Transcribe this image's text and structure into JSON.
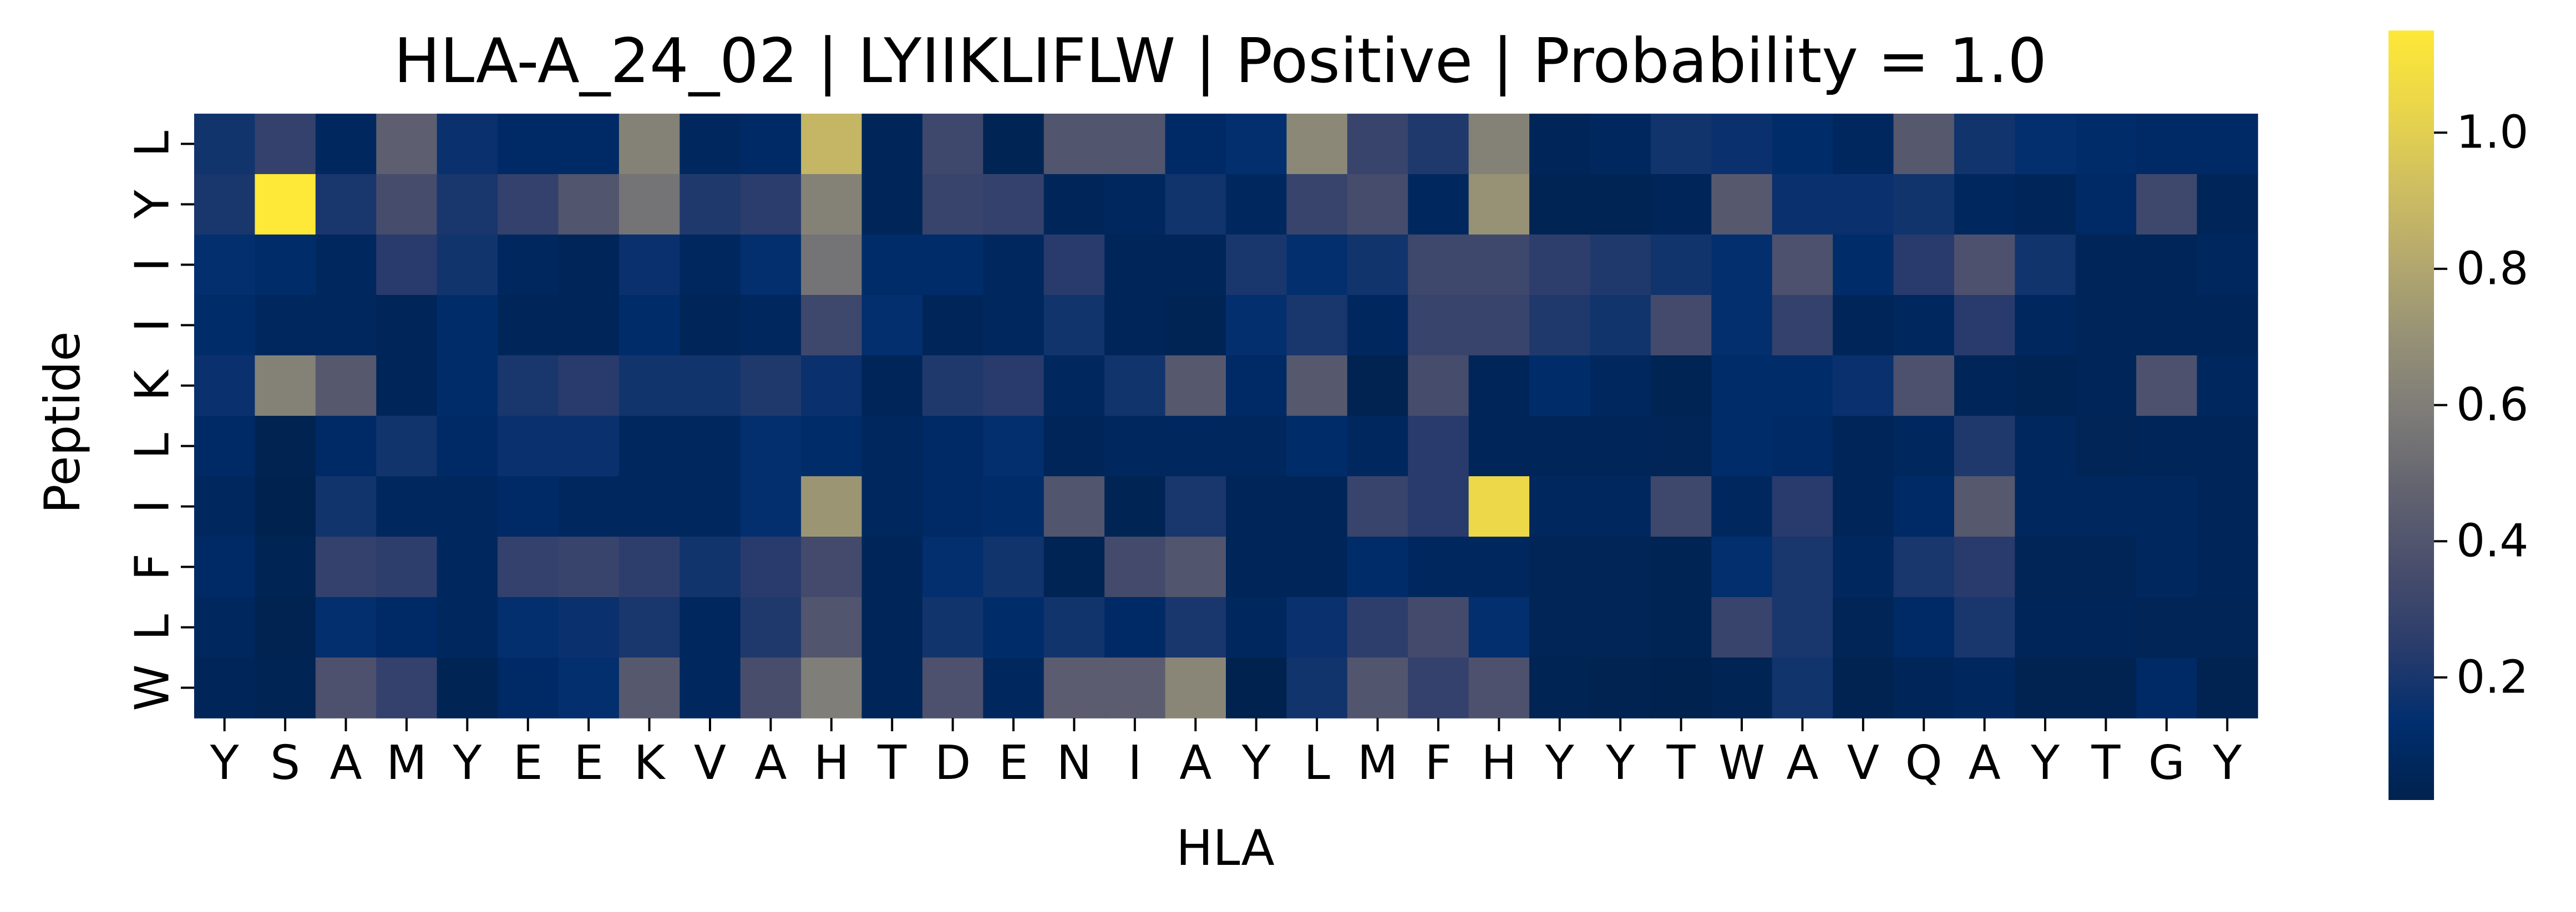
{
  "chart_data": {
    "type": "heatmap",
    "title": "HLA-A_24_02 | LYIIKLIFLW | Positive | Probability = 1.0",
    "xlabel": "HLA",
    "ylabel": "Peptide",
    "x_labels": [
      "Y",
      "S",
      "A",
      "M",
      "Y",
      "E",
      "E",
      "K",
      "V",
      "A",
      "H",
      "T",
      "D",
      "E",
      "N",
      "I",
      "A",
      "Y",
      "L",
      "M",
      "F",
      "H",
      "Y",
      "Y",
      "T",
      "W",
      "A",
      "V",
      "Q",
      "A",
      "Y",
      "T",
      "G",
      "Y"
    ],
    "y_labels": [
      "L",
      "Y",
      "I",
      "I",
      "K",
      "L",
      "I",
      "F",
      "L",
      "W"
    ],
    "values": [
      [
        0.18,
        0.28,
        0.08,
        0.45,
        0.16,
        0.1,
        0.1,
        0.62,
        0.08,
        0.1,
        0.88,
        0.06,
        0.32,
        0.04,
        0.4,
        0.4,
        0.1,
        0.14,
        0.65,
        0.3,
        0.22,
        0.62,
        0.06,
        0.08,
        0.18,
        0.16,
        0.12,
        0.08,
        0.42,
        0.18,
        0.14,
        0.12,
        0.1,
        0.1
      ],
      [
        0.2,
        1.15,
        0.2,
        0.35,
        0.2,
        0.28,
        0.4,
        0.55,
        0.22,
        0.25,
        0.62,
        0.06,
        0.3,
        0.28,
        0.06,
        0.08,
        0.18,
        0.08,
        0.3,
        0.35,
        0.08,
        0.7,
        0.04,
        0.04,
        0.06,
        0.42,
        0.16,
        0.16,
        0.18,
        0.08,
        0.06,
        0.1,
        0.32,
        0.06
      ],
      [
        0.14,
        0.12,
        0.08,
        0.24,
        0.18,
        0.08,
        0.06,
        0.16,
        0.08,
        0.14,
        0.55,
        0.12,
        0.12,
        0.08,
        0.24,
        0.06,
        0.06,
        0.2,
        0.14,
        0.18,
        0.32,
        0.32,
        0.26,
        0.22,
        0.18,
        0.14,
        0.38,
        0.12,
        0.24,
        0.38,
        0.18,
        0.06,
        0.06,
        0.08
      ],
      [
        0.12,
        0.08,
        0.08,
        0.06,
        0.12,
        0.06,
        0.06,
        0.12,
        0.06,
        0.08,
        0.32,
        0.14,
        0.06,
        0.08,
        0.18,
        0.06,
        0.04,
        0.14,
        0.2,
        0.08,
        0.3,
        0.3,
        0.22,
        0.18,
        0.34,
        0.14,
        0.28,
        0.06,
        0.08,
        0.24,
        0.08,
        0.06,
        0.06,
        0.06
      ],
      [
        0.16,
        0.62,
        0.42,
        0.06,
        0.12,
        0.2,
        0.24,
        0.18,
        0.18,
        0.22,
        0.16,
        0.06,
        0.22,
        0.24,
        0.08,
        0.18,
        0.42,
        0.1,
        0.42,
        0.03,
        0.35,
        0.06,
        0.12,
        0.08,
        0.04,
        0.12,
        0.12,
        0.16,
        0.38,
        0.06,
        0.04,
        0.06,
        0.38,
        0.08
      ],
      [
        0.1,
        0.03,
        0.1,
        0.18,
        0.1,
        0.16,
        0.16,
        0.08,
        0.08,
        0.14,
        0.12,
        0.08,
        0.1,
        0.14,
        0.06,
        0.08,
        0.08,
        0.08,
        0.12,
        0.08,
        0.24,
        0.06,
        0.06,
        0.06,
        0.05,
        0.12,
        0.1,
        0.06,
        0.08,
        0.22,
        0.08,
        0.05,
        0.06,
        0.06
      ],
      [
        0.08,
        0.02,
        0.18,
        0.08,
        0.08,
        0.1,
        0.08,
        0.08,
        0.08,
        0.14,
        0.72,
        0.08,
        0.1,
        0.12,
        0.4,
        0.04,
        0.2,
        0.06,
        0.06,
        0.3,
        0.24,
        1.05,
        0.08,
        0.08,
        0.32,
        0.08,
        0.24,
        0.06,
        0.1,
        0.42,
        0.08,
        0.08,
        0.08,
        0.06
      ],
      [
        0.1,
        0.04,
        0.28,
        0.26,
        0.08,
        0.28,
        0.3,
        0.26,
        0.18,
        0.24,
        0.34,
        0.06,
        0.14,
        0.18,
        0.04,
        0.34,
        0.4,
        0.06,
        0.06,
        0.12,
        0.08,
        0.08,
        0.05,
        0.05,
        0.04,
        0.14,
        0.2,
        0.08,
        0.2,
        0.24,
        0.05,
        0.05,
        0.08,
        0.06
      ],
      [
        0.08,
        0.03,
        0.14,
        0.1,
        0.08,
        0.14,
        0.16,
        0.2,
        0.08,
        0.22,
        0.4,
        0.06,
        0.18,
        0.12,
        0.18,
        0.1,
        0.2,
        0.08,
        0.16,
        0.26,
        0.34,
        0.14,
        0.05,
        0.05,
        0.04,
        0.3,
        0.2,
        0.05,
        0.1,
        0.2,
        0.06,
        0.06,
        0.05,
        0.05
      ],
      [
        0.06,
        0.04,
        0.38,
        0.28,
        0.04,
        0.1,
        0.14,
        0.42,
        0.08,
        0.36,
        0.6,
        0.06,
        0.38,
        0.08,
        0.44,
        0.44,
        0.64,
        0.02,
        0.18,
        0.4,
        0.28,
        0.38,
        0.04,
        0.03,
        0.02,
        0.04,
        0.18,
        0.03,
        0.06,
        0.08,
        0.03,
        0.03,
        0.1,
        0.03
      ]
    ],
    "colormap": "cividis",
    "vmin": 0.02,
    "vmax": 1.15,
    "colorbar_ticks": [
      "0.2",
      "0.4",
      "0.6",
      "0.8",
      "1.0"
    ],
    "colorbar_tick_values": [
      0.2,
      0.4,
      0.6,
      0.8,
      1.0
    ]
  }
}
